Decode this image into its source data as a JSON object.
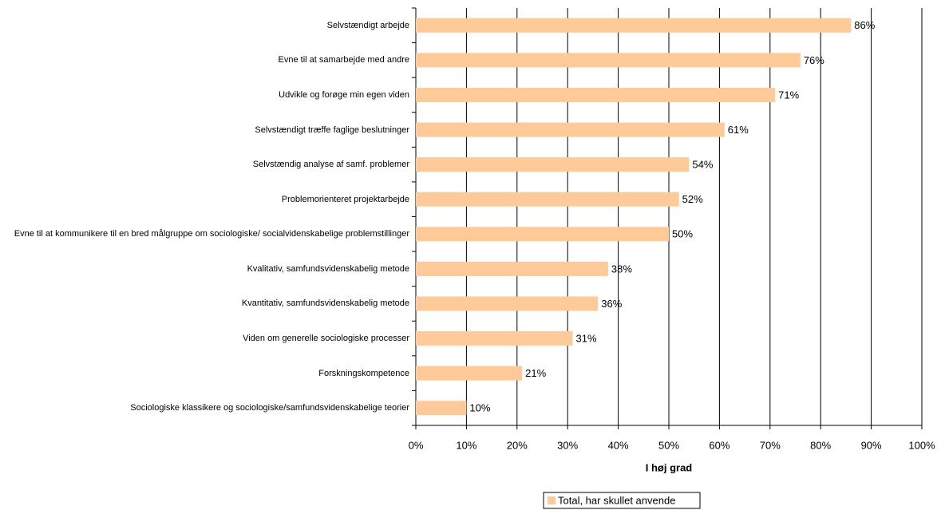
{
  "chart_data": {
    "type": "bar",
    "orientation": "horizontal",
    "xlabel": "I høj grad",
    "categories": [
      "Selvstændigt arbejde",
      "Evne til at samarbejde med andre",
      "Udvikle og forøge min egen viden",
      "Selvstændigt træffe faglige beslutninger",
      "Selvstændig analyse af samf. problemer",
      "Problemorienteret projektarbejde",
      "Evne til at kommunikere til en bred målgruppe om sociologiske/ socialvidenskabelige problemstillinger",
      "Kvalitativ, samfundsvidenskabelig metode",
      "Kvantitativ, samfundsvidenskabelig metode",
      "Viden om generelle sociologiske processer",
      "Forskningskompetence",
      "Sociologiske klassikere og sociologiske/samfundsvidenskabelige teorier"
    ],
    "series": [
      {
        "name": "Total, har skullet anvende",
        "color": "#fdca98",
        "values": [
          86,
          76,
          71,
          61,
          54,
          52,
          50,
          38,
          36,
          31,
          21,
          10
        ],
        "value_labels": [
          "86%",
          "76%",
          "71%",
          "61%",
          "54%",
          "52%",
          "50%",
          "38%",
          "36%",
          "31%",
          "21%",
          "10%"
        ]
      }
    ],
    "xlim": [
      0,
      100
    ],
    "xticks": [
      {
        "value": 0,
        "label": "0%"
      },
      {
        "value": 10,
        "label": "10%"
      },
      {
        "value": 20,
        "label": "20%"
      },
      {
        "value": 30,
        "label": "30%"
      },
      {
        "value": 40,
        "label": "40%"
      },
      {
        "value": 50,
        "label": "50%"
      },
      {
        "value": 60,
        "label": "60%"
      },
      {
        "value": 70,
        "label": "70%"
      },
      {
        "value": 80,
        "label": "80%"
      },
      {
        "value": 90,
        "label": "90%"
      },
      {
        "value": 100,
        "label": "100%"
      }
    ],
    "grid": true,
    "legend": "bottom"
  }
}
